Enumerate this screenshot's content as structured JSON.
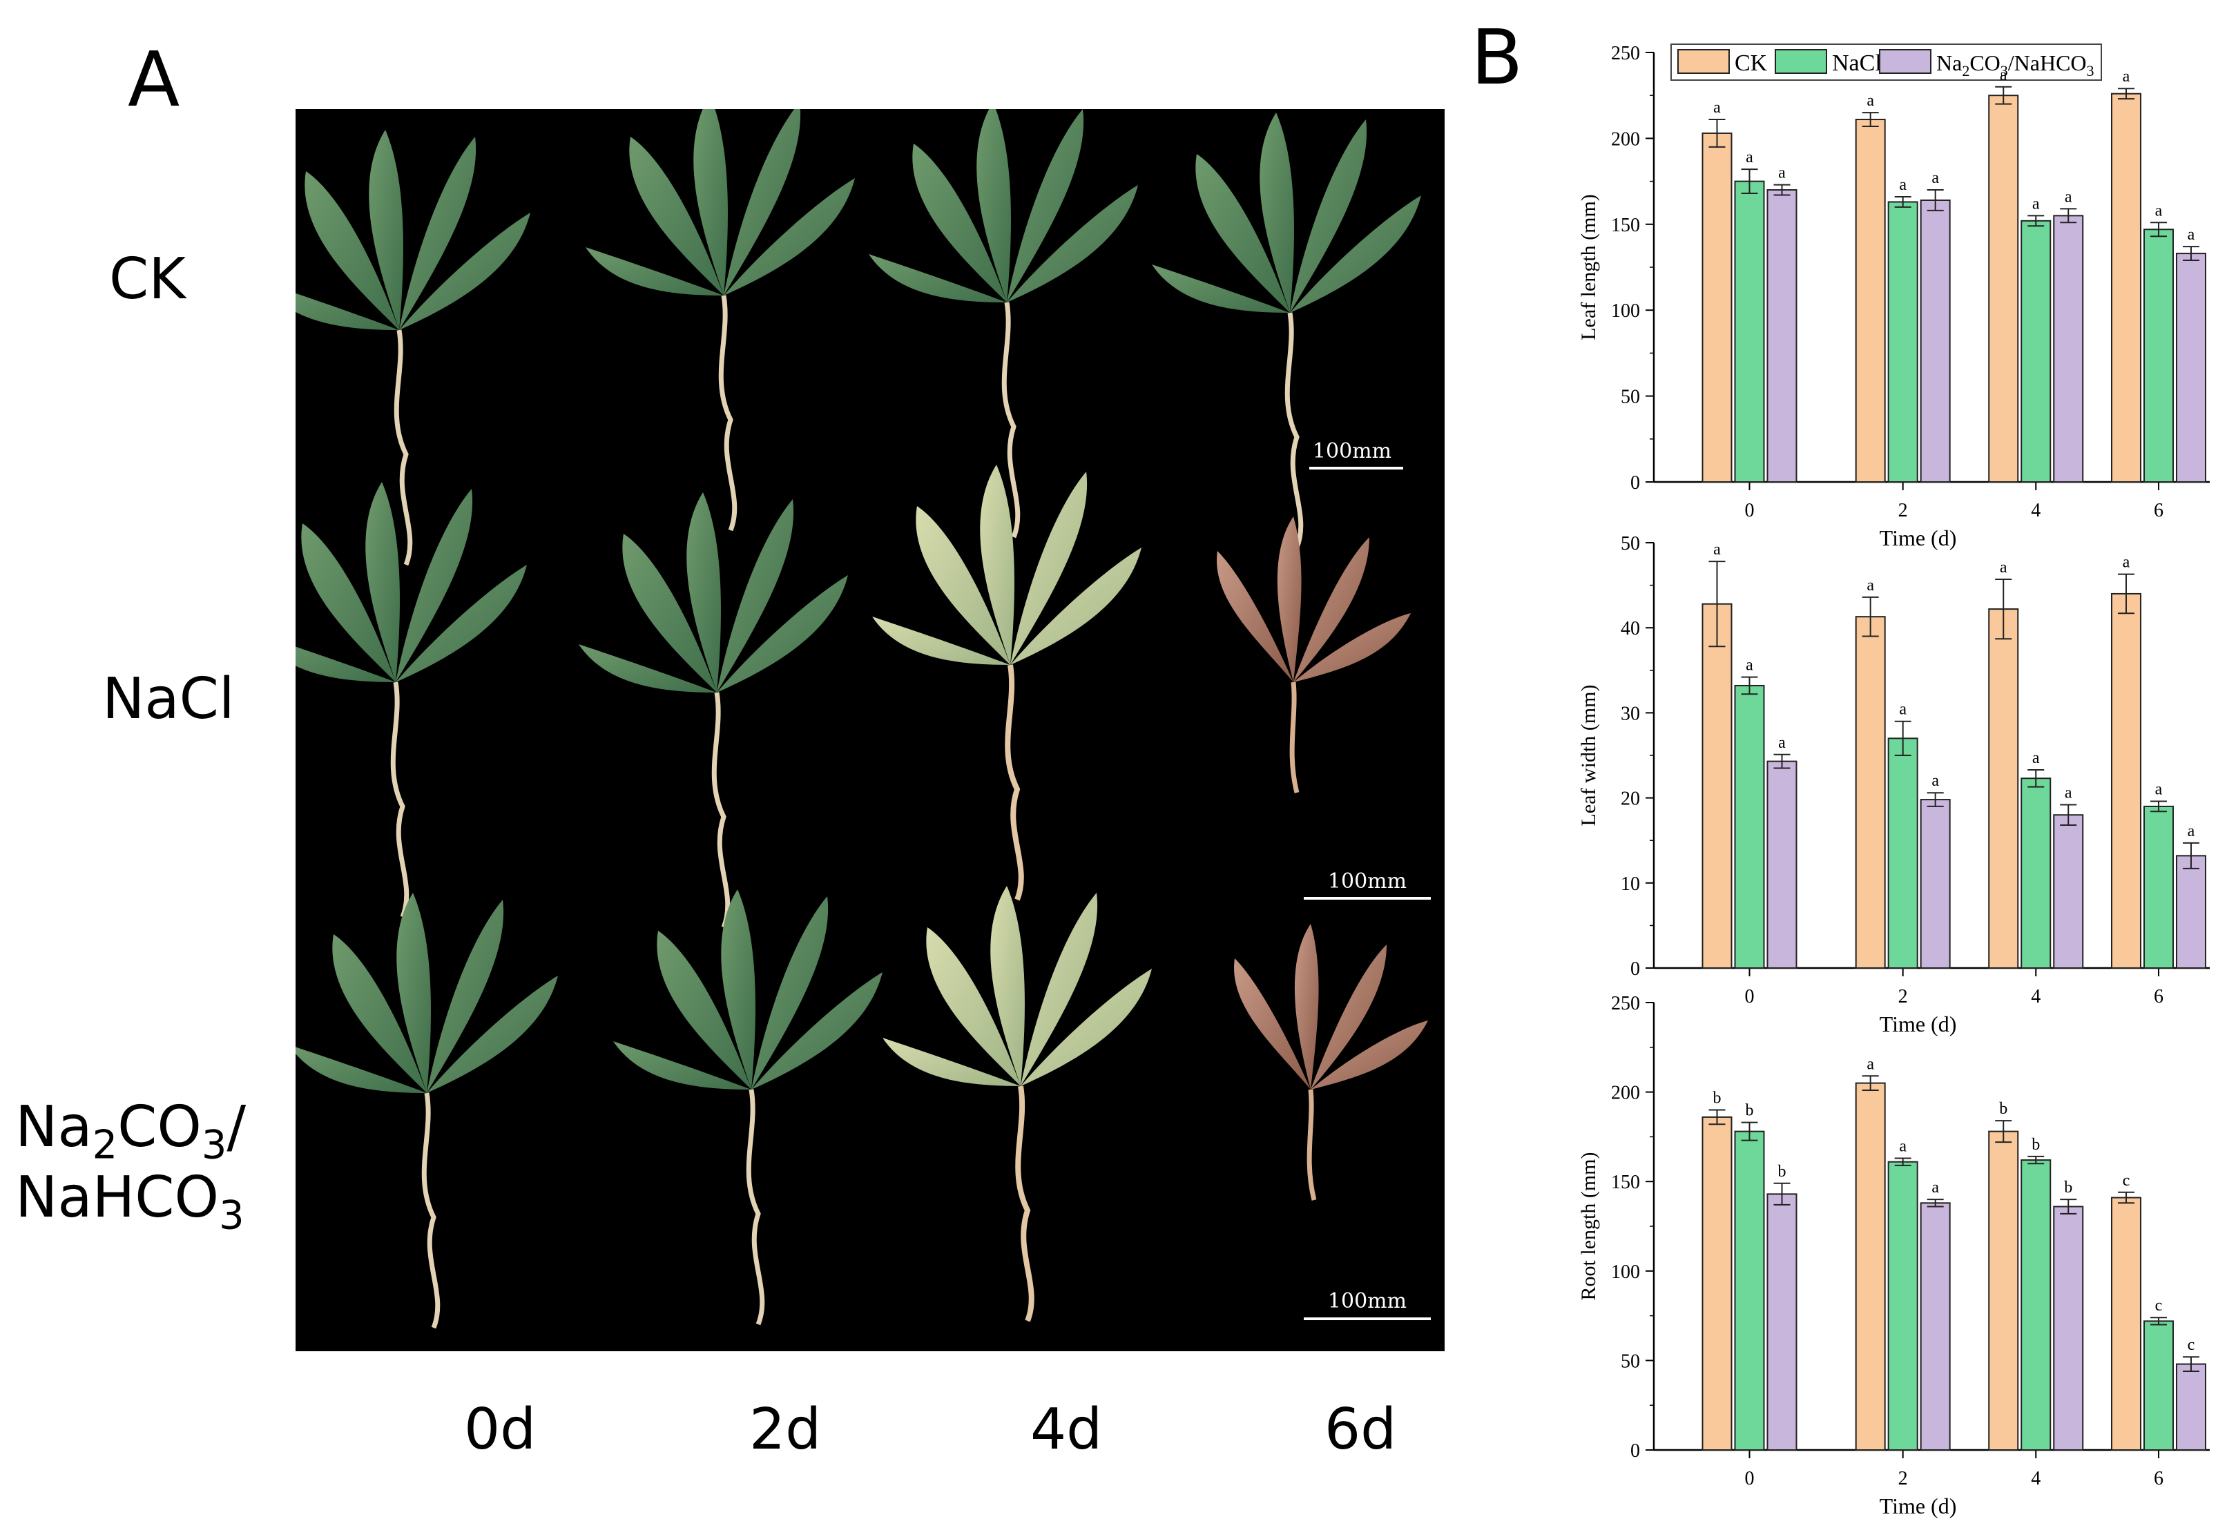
{
  "panel_a": {
    "label": "A",
    "rows": [
      "CK",
      "NaCl"
    ],
    "row3_part1": "Na",
    "row3_sub1": "2",
    "row3_part2": "CO",
    "row3_sub2": "3",
    "row3_part3": "/",
    "row3_line2_part1": "NaHCO",
    "row3_line2_sub": "3",
    "columns": [
      "0d",
      "2d",
      "4d",
      "6d"
    ],
    "scale_bar": "100mm"
  },
  "panel_b": {
    "label": "B"
  },
  "colors": {
    "CK": "#f9c89b",
    "NaCl": "#6ed79a",
    "Na2CO3_NaHCO3": "#c9b6dd",
    "photo_background": "#000000"
  },
  "chart_data": [
    {
      "type": "bar",
      "title": "",
      "xlabel": "Time (d)",
      "ylabel": "Leaf  length (mm)",
      "ylim": [
        0,
        250
      ],
      "yticks": [
        0,
        50,
        100,
        150,
        200,
        250
      ],
      "categories": [
        "0",
        "2",
        "4",
        "6"
      ],
      "legend": {
        "position": "top",
        "entries": [
          "CK",
          "NaCl",
          "Na2CO3/NaHCO3"
        ],
        "ck_label": "CK",
        "nacl_label": "NaCl",
        "alkali_part1": "Na",
        "alkali_sub1": "2",
        "alkali_part2": "CO",
        "alkali_sub2": "3",
        "alkali_part3": "/NaHCO",
        "alkali_sub3": "3"
      },
      "series": [
        {
          "name": "CK",
          "values": [
            203,
            211,
            225,
            226
          ],
          "errors": [
            8,
            4,
            5,
            3
          ],
          "letters": [
            "a",
            "a",
            "a",
            "a"
          ]
        },
        {
          "name": "NaCl",
          "values": [
            175,
            163,
            152,
            147
          ],
          "errors": [
            7,
            3,
            3,
            4
          ],
          "letters": [
            "a",
            "a",
            "a",
            "a"
          ]
        },
        {
          "name": "Na2CO3/NaHCO3",
          "values": [
            170,
            164,
            155,
            133
          ],
          "errors": [
            3,
            6,
            4,
            4
          ],
          "letters": [
            "a",
            "a",
            "a",
            "a"
          ]
        }
      ]
    },
    {
      "type": "bar",
      "title": "",
      "xlabel": "Time (d)",
      "ylabel": "Leaf width (mm)",
      "ylim": [
        0,
        50
      ],
      "yticks": [
        0,
        10,
        20,
        30,
        40,
        50
      ],
      "categories": [
        "0",
        "2",
        "4",
        "6"
      ],
      "series": [
        {
          "name": "CK",
          "values": [
            42.8,
            41.3,
            42.2,
            44.0
          ],
          "errors": [
            5.0,
            2.3,
            3.5,
            2.3
          ],
          "letters": [
            "a",
            "a",
            "a",
            "a"
          ]
        },
        {
          "name": "NaCl",
          "values": [
            33.2,
            27.0,
            22.3,
            19.0
          ],
          "errors": [
            1.0,
            2.0,
            1.0,
            0.6
          ],
          "letters": [
            "a",
            "a",
            "a",
            "a"
          ]
        },
        {
          "name": "Na2CO3/NaHCO3",
          "values": [
            24.3,
            19.8,
            18.0,
            13.2
          ],
          "errors": [
            0.8,
            0.8,
            1.2,
            1.5
          ],
          "letters": [
            "a",
            "a",
            "a",
            "a"
          ]
        }
      ]
    },
    {
      "type": "bar",
      "title": "",
      "xlabel": "Time (d)",
      "ylabel": "Root length (mm)",
      "ylim": [
        0,
        250
      ],
      "yticks": [
        0,
        50,
        100,
        150,
        200,
        250
      ],
      "categories": [
        "0",
        "2",
        "4",
        "6"
      ],
      "series": [
        {
          "name": "CK",
          "values": [
            186,
            205,
            178,
            141
          ],
          "errors": [
            4,
            4,
            6,
            3
          ],
          "letters": [
            "b",
            "a",
            "b",
            "c"
          ]
        },
        {
          "name": "NaCl",
          "values": [
            178,
            161,
            162,
            72
          ],
          "errors": [
            5,
            2,
            2,
            2
          ],
          "letters": [
            "b",
            "a",
            "b",
            "c"
          ]
        },
        {
          "name": "Na2CO3/NaHCO3",
          "values": [
            143,
            138,
            136,
            48
          ],
          "errors": [
            6,
            2,
            4,
            4
          ],
          "letters": [
            "b",
            "a",
            "b",
            "c"
          ]
        }
      ]
    }
  ]
}
